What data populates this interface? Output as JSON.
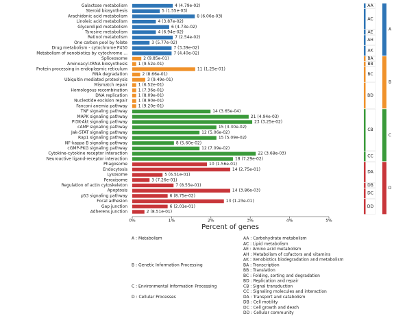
{
  "chart_data": {
    "type": "bar",
    "orientation": "horizontal",
    "xlabel": "Percent of genes",
    "xlim": [
      0,
      5
    ],
    "xticks": [
      {
        "value": 0,
        "label": "0%"
      },
      {
        "value": 1,
        "label": "1%"
      },
      {
        "value": 2,
        "label": "2%"
      },
      {
        "value": 3,
        "label": "3%"
      },
      {
        "value": 4,
        "label": "4%"
      },
      {
        "value": 5,
        "label": "5%"
      }
    ],
    "grid": false,
    "classes": [
      {
        "code": "A",
        "color": "#2e75b6",
        "legend": "A : Metabolism",
        "subclasses": [
          {
            "code": "AA",
            "legend": "AA : Carbohydrate metabolism",
            "categories": [
              "Galactose metabolism"
            ],
            "values": [
              1.03
            ],
            "bar_labels": [
              "4 (4.79e-02)"
            ]
          },
          {
            "code": "AC",
            "legend": "AC : Lipid metabolism",
            "categories": [
              "Steroid biosynthesis",
              "Arachidonic acid metabolism",
              "Linoleic acid metabolism",
              "Glycerolipid metabolism"
            ],
            "values": [
              0.7,
              1.59,
              0.6,
              0.94
            ],
            "bar_labels": [
              "5 (1.55e-03)",
              "8 (6.06e-03)",
              "4 (3.87e-02)",
              "6 (4.73e-02)"
            ]
          },
          {
            "code": "AE",
            "legend": "AE : Amino acid metabolism",
            "categories": [
              "Tyrosine metabolism"
            ],
            "values": [
              0.6
            ],
            "bar_labels": [
              "4 (6.94e-02)"
            ]
          },
          {
            "code": "AH",
            "legend": "AH : Metabolism of cofactors and vitamins",
            "categories": [
              "Retinol metabolism",
              "One carbon pool by folate"
            ],
            "values": [
              1.03,
              0.44
            ],
            "bar_labels": [
              "7 (2.54e-02)",
              "3 (5.77e-02)"
            ]
          },
          {
            "code": "AK",
            "legend": "AK : Xenobiotics biodegradation and metabolism",
            "categories": [
              "Drug metabolism - cytochrome P450",
              "Metabolism of xenobiotics by cytochrome ..."
            ],
            "values": [
              1.0,
              1.0
            ],
            "bar_labels": [
              "7 (3.39e-02)",
              "7 (4.40e-02)"
            ]
          }
        ]
      },
      {
        "code": "B",
        "color": "#f0922b",
        "legend": "B : Genetic Information Processing",
        "subclasses": [
          {
            "code": "BA",
            "legend": "BA : Transcription",
            "categories": [
              "Spliceosome"
            ],
            "values": [
              0.23
            ],
            "bar_labels": [
              "2 (9.85e-01)"
            ]
          },
          {
            "code": "BB",
            "legend": "BB : Translation",
            "categories": [
              "Aminoacyl-tRNA biosynthesis"
            ],
            "values": [
              0.1
            ],
            "bar_labels": [
              "1 (9.52e-01)"
            ]
          },
          {
            "code": "BC",
            "legend": "BC : Folding, sorting and degradation",
            "categories": [
              "Protein processing in endoplasmic reticulum",
              "RNA degradation",
              "Ubiquitin mediated proteolysis"
            ],
            "values": [
              1.6,
              0.2,
              0.33
            ],
            "bar_labels": [
              "11 (1.25e-01)",
              "2 (8.66e-01)",
              "3 (9.49e-01)"
            ]
          },
          {
            "code": "BD",
            "legend": "BD : Replication and repair",
            "categories": [
              "Mismatch repair",
              "Homologous recombination",
              "DNA replication",
              "Nucleotide excision repair",
              "Fanconi anemia pathway"
            ],
            "values": [
              0.1,
              0.1,
              0.1,
              0.1,
              0.1
            ],
            "bar_labels": [
              "1 (6.52e-01)",
              "1 (7.36e-01)",
              "1 (8.09e-01)",
              "1 (8.90e-01)",
              "1 (9.20e-01)"
            ]
          }
        ]
      },
      {
        "code": "C",
        "color": "#3a9a3a",
        "legend": "C : Environmental Information Processing",
        "subclasses": [
          {
            "code": "CB",
            "legend": "CB : Signal transduction",
            "categories": [
              "TNF signaling pathway",
              "MAPK signaling pathway",
              "PI3K-Akt signaling pathway",
              "cAMP signaling pathway",
              "Jak-STAT signaling pathway",
              "Rap1 signaling pathway",
              "NF-kappa B signaling pathway",
              "cGMP-PKG signaling pathway"
            ],
            "values": [
              1.99,
              2.96,
              3.05,
              2.14,
              1.71,
              2.14,
              1.06,
              1.71
            ],
            "bar_labels": [
              "14 (3.65e-04)",
              "21 (4.94e-03)",
              "23 (3.25e-02)",
              "15 (3.30e-02)",
              "12 (5.06e-02)",
              "15 (5.09e-02)",
              "8 (5.60e-02)",
              "12 (7.09e-02)"
            ]
          },
          {
            "code": "CC",
            "legend": "CC : Signaling molecules and interaction",
            "categories": [
              "Cytokine-cytokine receptor interaction",
              "Neuroactive ligand-receptor interaction"
            ],
            "values": [
              3.14,
              2.56
            ],
            "bar_labels": [
              "22 (3.68e-03)",
              "18 (7.29e-02)"
            ]
          }
        ]
      },
      {
        "code": "D",
        "color": "#c8363a",
        "legend": "D : Cellular Processes",
        "subclasses": [
          {
            "code": "DA",
            "legend": "DA : Transport and catabolism",
            "categories": [
              "Phagosome",
              "Endocytosis",
              "Lysosome",
              "Peroxisome"
            ],
            "values": [
              1.9,
              2.49,
              0.77,
              0.44
            ],
            "bar_labels": [
              "10 (1.56e-01)",
              "14 (2.75e-01)",
              "5 (6.51e-01)",
              "3 (7.26e-01)"
            ]
          },
          {
            "code": "DB",
            "legend": "DB : Cell motility",
            "categories": [
              "Regulation of actin cytoskeleton"
            ],
            "values": [
              1.05
            ],
            "bar_labels": [
              "7 (8.55e-01)"
            ]
          },
          {
            "code": "DC",
            "legend": "DC : Cell growth and death",
            "categories": [
              "Apoptosis",
              "p53 signaling pathway"
            ],
            "values": [
              2.49,
              0.9
            ],
            "bar_labels": [
              "14 (3.86e-03)",
              "6 (8.75e-02)"
            ]
          },
          {
            "code": "DD",
            "legend": "DD : Cellular community",
            "categories": [
              "Focal adhesion",
              "Gap junction",
              "Adherens junction"
            ],
            "values": [
              2.33,
              0.9,
              0.31
            ],
            "bar_labels": [
              "13 (1.23e-01)",
              "6 (2.01e-01)",
              "2 (8.51e-01)"
            ]
          }
        ]
      }
    ]
  }
}
